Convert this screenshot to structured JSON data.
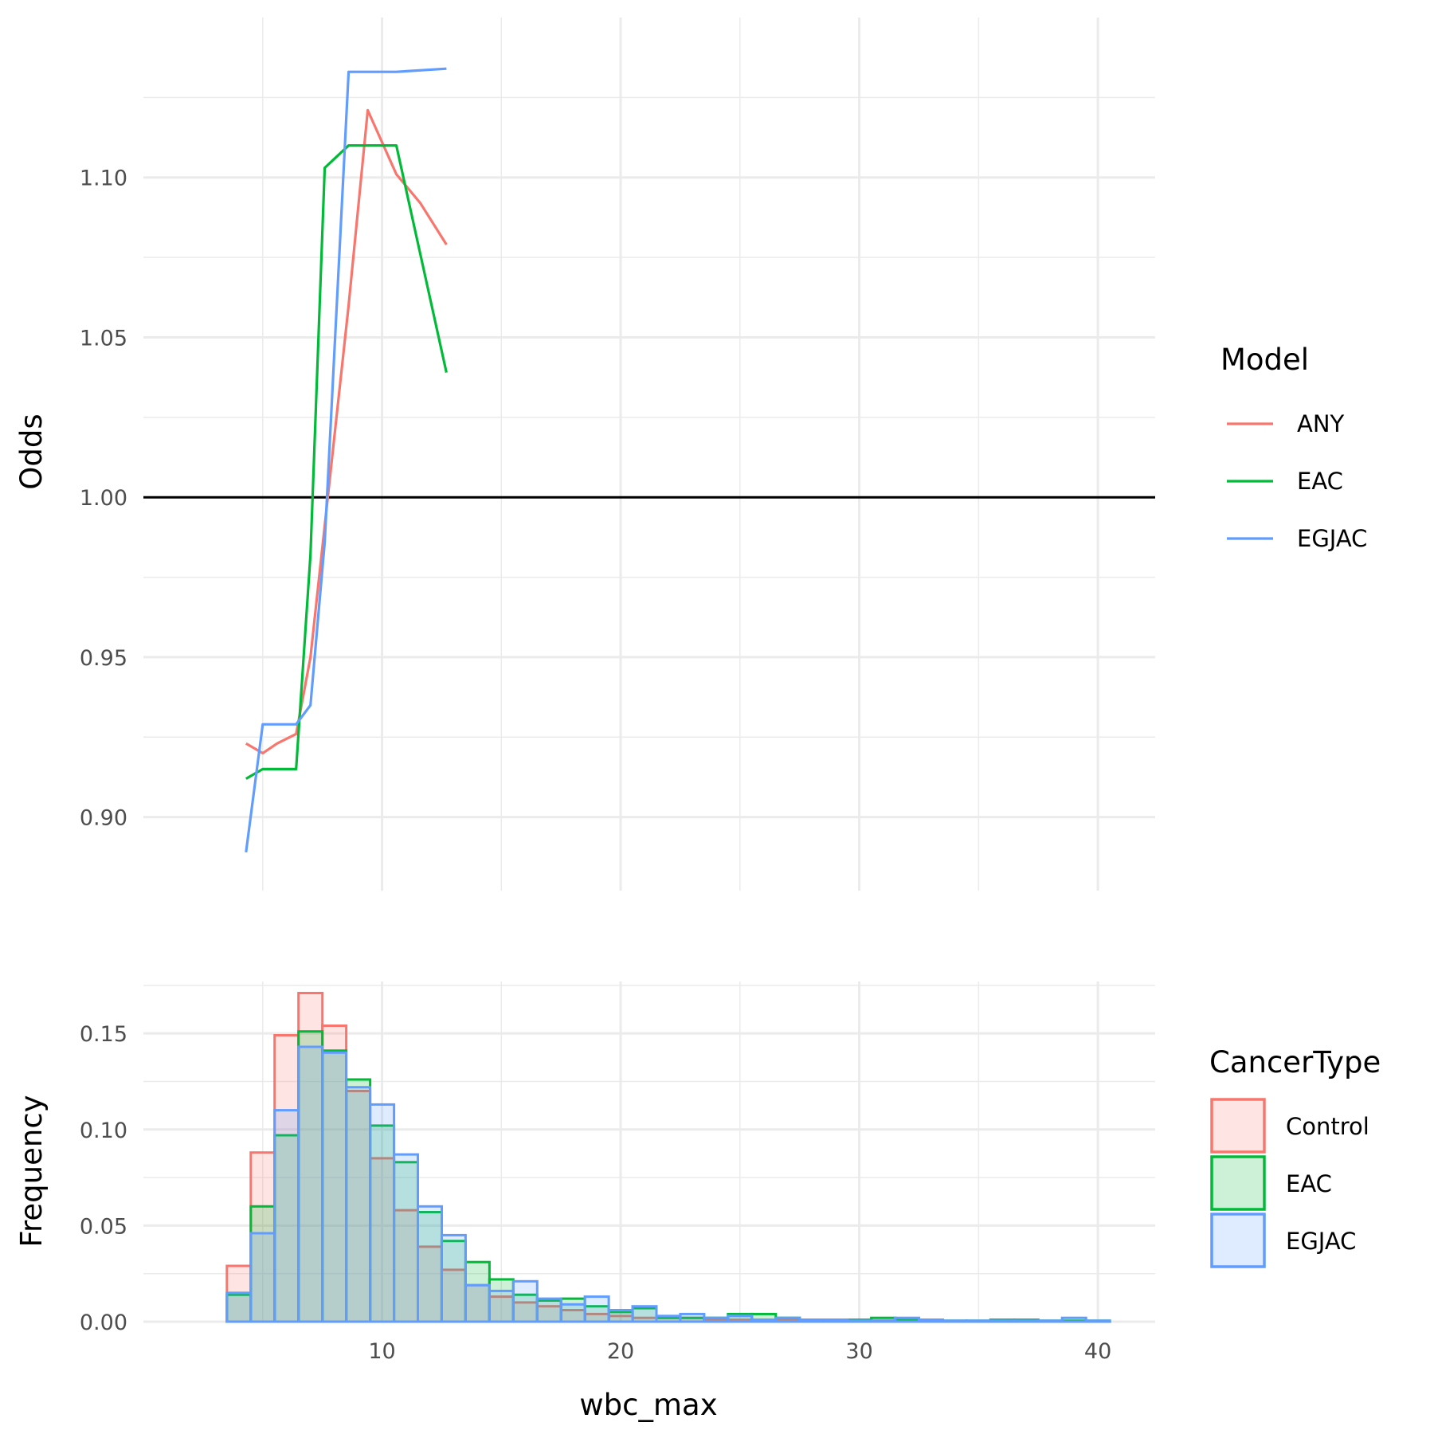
{
  "chart_data": [
    {
      "type": "line",
      "panel": "top",
      "xlabel": "",
      "ylabel": "Odds",
      "xlim": [
        0,
        42.4
      ],
      "ylim": [
        0.877,
        1.15
      ],
      "x_ticks": [
        10,
        20,
        30,
        40
      ],
      "y_ticks": [
        0.9,
        0.95,
        1.0,
        1.05,
        1.1
      ],
      "y_tick_labels": [
        "0.90",
        "0.95",
        "1.00",
        "1.05",
        "1.10"
      ],
      "hline": 1.0,
      "grid": true,
      "legend": {
        "title": "Model",
        "position": "right",
        "entries": [
          "ANY",
          "EAC",
          "EGJAC"
        ]
      },
      "series": [
        {
          "name": "ANY",
          "color": "#F8766D",
          "x": [
            4.3,
            5.0,
            5.6,
            6.4,
            7.0,
            8.6,
            9.4,
            10.6,
            11.6,
            12.7
          ],
          "y": [
            0.923,
            0.92,
            0.923,
            0.926,
            0.95,
            1.06,
            1.121,
            1.101,
            1.092,
            1.079
          ]
        },
        {
          "name": "EAC",
          "color": "#00BA38",
          "x": [
            4.3,
            5.0,
            5.6,
            6.4,
            7.0,
            7.6,
            8.6,
            9.4,
            10.6,
            12.7
          ],
          "y": [
            0.912,
            0.915,
            0.915,
            0.915,
            0.982,
            1.103,
            1.11,
            1.11,
            1.11,
            1.039
          ]
        },
        {
          "name": "EGJAC",
          "color": "#619CFF",
          "x": [
            4.3,
            5.0,
            5.6,
            6.4,
            7.0,
            7.6,
            8.6,
            9.4,
            10.6,
            12.7
          ],
          "y": [
            0.889,
            0.929,
            0.929,
            0.929,
            0.935,
            0.986,
            1.133,
            1.133,
            1.133,
            1.134
          ]
        }
      ]
    },
    {
      "type": "bar",
      "panel": "bottom",
      "subtype": "histogram",
      "xlabel": "wbc_max",
      "ylabel": "Frequency",
      "xlim": [
        0,
        42.4
      ],
      "ylim": [
        0,
        0.177
      ],
      "x_ticks": [
        10,
        20,
        30,
        40
      ],
      "x_tick_labels": [
        "10",
        "20",
        "30",
        "40"
      ],
      "y_ticks": [
        0.0,
        0.05,
        0.1,
        0.15
      ],
      "y_tick_labels": [
        "0.00",
        "0.05",
        "0.10",
        "0.15"
      ],
      "bin_start": 3.5,
      "bin_width": 1.0,
      "grid": true,
      "legend": {
        "title": "CancerType",
        "position": "right",
        "entries": [
          "Control",
          "EAC",
          "EGJAC"
        ]
      },
      "series": [
        {
          "name": "Control",
          "color": "#F8766D",
          "values": [
            0.029,
            0.088,
            0.149,
            0.171,
            0.154,
            0.12,
            0.085,
            0.058,
            0.039,
            0.027,
            0.019,
            0.013,
            0.01,
            0.008,
            0.006,
            0.004,
            0.003,
            0.002,
            0.002,
            0.002,
            0.001,
            0.001,
            0.001,
            0.001,
            0.0005,
            0.0005,
            0.0005,
            0.0005,
            0.0003,
            0.0003,
            0.0003,
            0.0002,
            0.0002,
            0.0002,
            0.0002,
            0.0001,
            0.0001
          ]
        },
        {
          "name": "EAC",
          "color": "#00BA38",
          "values": [
            0.014,
            0.06,
            0.097,
            0.151,
            0.141,
            0.126,
            0.102,
            0.083,
            0.057,
            0.042,
            0.031,
            0.022,
            0.014,
            0.011,
            0.012,
            0.008,
            0.005,
            0.007,
            0.002,
            0.002,
            0.002,
            0.004,
            0.004,
            0.002,
            0.001,
            0.001,
            0.001,
            0.002,
            0.001,
            0.001,
            0.0005,
            0.0005,
            0.001,
            0.001,
            0.0005,
            0.0005,
            0.0005
          ]
        },
        {
          "name": "EGJAC",
          "color": "#619CFF",
          "values": [
            0.015,
            0.046,
            0.11,
            0.143,
            0.14,
            0.122,
            0.113,
            0.087,
            0.06,
            0.045,
            0.019,
            0.016,
            0.021,
            0.012,
            0.009,
            0.013,
            0.006,
            0.008,
            0.003,
            0.004,
            0.002,
            0.003,
            0.001,
            0.002,
            0.001,
            0.001,
            0.0005,
            0.0005,
            0.002,
            0.001,
            0.0005,
            0.0005,
            0.0005,
            0.0005,
            0.0005,
            0.002,
            0.0005
          ]
        }
      ]
    }
  ]
}
